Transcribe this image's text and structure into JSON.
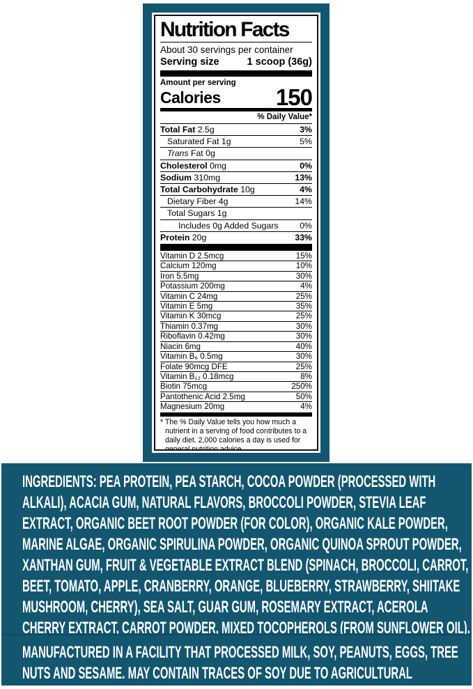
{
  "colors": {
    "panel_teal": "#135670",
    "panel_seam": "#0d4a61",
    "label_text": "#000000",
    "panel_text": "#ffffff"
  },
  "nutrition_label": {
    "title": "Nutrition Facts",
    "servings_per_container": "About 30 servings per container",
    "serving_size_label": "Serving size",
    "serving_size_value": "1 scoop (36g)",
    "amount_per_serving": "Amount per serving",
    "calories_label": "Calories",
    "calories_value": "150",
    "daily_value_header": "% Daily Value*",
    "macro_rows": [
      {
        "name": "Total Fat",
        "amount": "2.5g",
        "pct": "3%",
        "style": "main"
      },
      {
        "name": "Saturated Fat",
        "amount": "1g",
        "pct": "5%",
        "style": "sub"
      },
      {
        "name": "Trans",
        "amount": "Fat 0g",
        "pct": "",
        "style": "sub-italic"
      },
      {
        "name": "Cholesterol",
        "amount": "0mg",
        "pct": "0%",
        "style": "main"
      },
      {
        "name": "Sodium",
        "amount": "310mg",
        "pct": "13%",
        "style": "main"
      },
      {
        "name": "Total Carbohydrate",
        "amount": "10g",
        "pct": "4%",
        "style": "main"
      },
      {
        "name": "Dietary Fiber",
        "amount": "4g",
        "pct": "14%",
        "style": "sub"
      },
      {
        "name": "Total Sugars",
        "amount": "1g",
        "pct": "",
        "style": "sub"
      },
      {
        "name": "Includes 0g Added Sugars",
        "amount": "",
        "pct": "0%",
        "style": "sub2"
      },
      {
        "name": "Protein",
        "amount": "20g",
        "pct": "33%",
        "style": "main"
      }
    ],
    "micro_rows": [
      {
        "name": "Vitamin D 2.5mcg",
        "pct": "15%"
      },
      {
        "name": "Calcium 120mg",
        "pct": "10%"
      },
      {
        "name": "Iron 5.5mg",
        "pct": "30%"
      },
      {
        "name": "Potassium 200mg",
        "pct": "4%"
      },
      {
        "name": "Vitamin C 24mg",
        "pct": "25%"
      },
      {
        "name": "Vitamin E 5mg",
        "pct": "35%"
      },
      {
        "name": "Vitamin K 30mcg",
        "pct": "25%"
      },
      {
        "name": "Thiamin 0.37mg",
        "pct": "30%"
      },
      {
        "name": "Riboflavin 0.42mg",
        "pct": "30%"
      },
      {
        "name": "Niacin 6mg",
        "pct": "40%"
      },
      {
        "name": "Vitamin B₆ 0.5mg",
        "pct": "30%"
      },
      {
        "name": "Folate 90mcg DFE",
        "pct": "25%"
      },
      {
        "name": "Vitamin B₁₂ 0.18mcg",
        "pct": "8%"
      },
      {
        "name": "Biotin 75mcg",
        "pct": "250%"
      },
      {
        "name": "Pantothenic Acid 2.5mg",
        "pct": "50%"
      },
      {
        "name": "Magnesium 20mg",
        "pct": "4%"
      }
    ],
    "footnote": "* The % Daily Value tells you how much a nutrient in a serving of food contributes to a daily diet. 2,000 calories a day is used for general nutrition advice."
  },
  "ingredients": {
    "text": "INGREDIENTS: PEA PROTEIN, PEA STARCH, COCOA POWDER (PROCESSED WITH ALKALI), ACACIA GUM, NATURAL FLAVORS, BROCCOLI POWDER, STEVIA LEAF EXTRACT, ORGANIC BEET ROOT POWDER (FOR COLOR), ORGANIC KALE POWDER, MARINE ALGAE, ORGANIC SPIRULINA POWDER, ORGANIC QUINOA SPROUT POWDER, XANTHAN GUM, FRUIT & VEGETABLE EXTRACT BLEND (SPINACH, BROCCOLI, CARROT, BEET, TOMATO, APPLE, CRANBERRY, ORANGE, BLUEBERRY, STRAWBERRY, SHIITAKE MUSHROOM, CHERRY), SEA SALT, GUAR GUM, ROSEMARY EXTRACT, ACEROLA CHERRY EXTRACT, CARROT POWDER, MIXED TOCOPHEROLS (FROM SUNFLOWER OIL)."
  },
  "allergen_statement": {
    "text": "MANUFACTURED IN A FACILITY THAT PROCESSED MILK, SOY, PEANUTS, EGGS, TREE NUTS AND SESAME. MAY CONTAIN TRACES OF SOY DUE TO AGRICULTURAL PRACTICES."
  }
}
